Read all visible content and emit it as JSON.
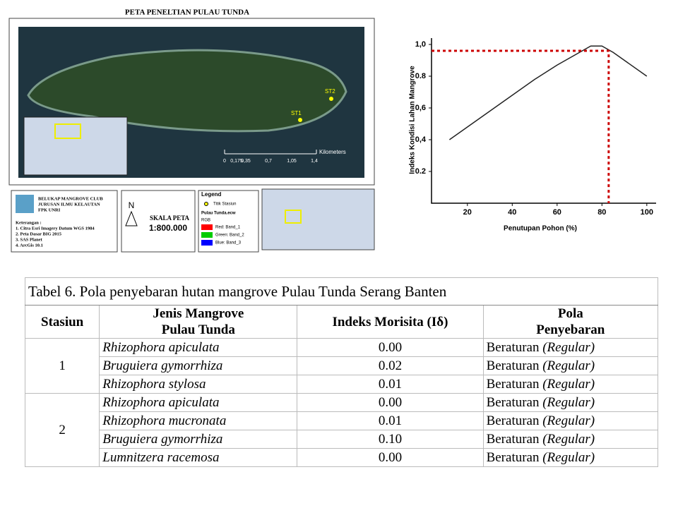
{
  "map": {
    "title": "PETA PENELTIAN PULAU TUNDA",
    "stations": [
      "ST1",
      "ST2"
    ],
    "scale_unit": "Kilometers",
    "scale_labels": [
      "0",
      "0,175",
      "0,35",
      "0,7",
      "1,05",
      "1,4"
    ],
    "institution": [
      "BELUKAP MANGROVE CLUB",
      "JURUSAN ILMU KELAUTAN",
      "FPK UNRI"
    ],
    "notes_title": "Keterangan :",
    "notes": [
      "1. Citra Esri Imagery Datum WGS 1984",
      "2. Peta Dasar BIG 2015",
      "3. SAS Planet",
      "4. ArcGis 10.1"
    ],
    "north": "N",
    "scale_title": "SKALA PETA",
    "scale": "1:800.000",
    "legend": {
      "title": "Legend",
      "point": "Titik Stasiun",
      "layer": "Pulau Tunda.ecw",
      "rgb": "RGB",
      "bands": [
        {
          "label": "Red: Band_1",
          "color": "#ff0000"
        },
        {
          "label": "Green: Band_2",
          "color": "#00cc00"
        },
        {
          "label": "Blue: Band_3",
          "color": "#0000ff"
        }
      ]
    }
  },
  "chart_data": {
    "type": "line",
    "xlabel": "Penutupan Pohon (%)",
    "ylabel": "Indeks Kondisi Lahan Mangrove",
    "x": [
      12,
      20,
      30,
      40,
      50,
      60,
      70,
      75,
      80,
      85,
      90,
      100
    ],
    "values": [
      0.4,
      0.48,
      0.58,
      0.68,
      0.78,
      0.87,
      0.95,
      0.99,
      0.99,
      0.95,
      0.9,
      0.8
    ],
    "color": "#222222",
    "xlim": [
      4,
      101
    ],
    "ylim": [
      0,
      1.04
    ],
    "xticks": [
      20,
      40,
      60,
      80,
      100
    ],
    "yticks": [
      {
        "value": 0.2,
        "label": "0.2"
      },
      {
        "value": 0.4,
        "label": "0,4"
      },
      {
        "value": 0.6,
        "label": "0,6"
      },
      {
        "value": 0.8,
        "label": "0.8"
      },
      {
        "value": 1.0,
        "label": "1,0"
      }
    ],
    "reference": {
      "x": 83,
      "y": 0.96,
      "color": "#cc0000"
    }
  },
  "table": {
    "title": "Tabel 6. Pola penyebaran hutan mangrove Pulau Tunda Serang Banten",
    "headers": [
      "Stasiun",
      "Jenis Mangrove\nPulau Tunda",
      "Indeks Morisita (Iδ)",
      "Pola\nPenyebaran"
    ],
    "groups": [
      {
        "station": "1",
        "rows": [
          [
            "Rhizophora apiculata",
            "0.00",
            "Beraturan",
            "(Regular)"
          ],
          [
            "Bruguiera gymorrhiza",
            "0.02",
            "Beraturan",
            "(Regular)"
          ],
          [
            "Rhizophora stylosa",
            "0.01",
            "Beraturan",
            "(Regular)"
          ]
        ]
      },
      {
        "station": "2",
        "rows": [
          [
            "Rhizophora apiculata",
            "0.00",
            "Beraturan",
            "(Regular)"
          ],
          [
            "Rhizophora mucronata",
            "0.01",
            "Beraturan",
            "(Regular)"
          ],
          [
            "Bruguiera gymorrhiza",
            "0.10",
            "Beraturan",
            "(Regular)"
          ],
          [
            "Lumnitzera racemosa",
            "0.00",
            "Beraturan",
            "(Regular)"
          ]
        ]
      }
    ]
  }
}
